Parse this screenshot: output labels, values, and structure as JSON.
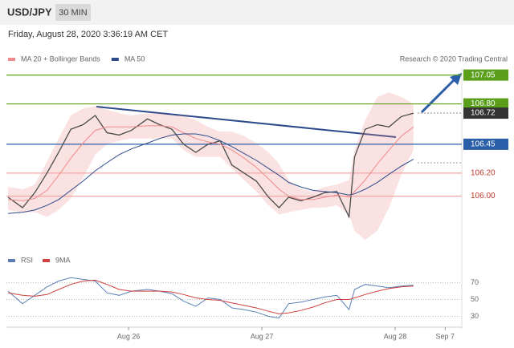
{
  "chart_data": {
    "type": "line",
    "symbol": "USD/JPY",
    "timeframe": "30 MIN",
    "timestamp": "Friday, August 28, 2020 3:36:19 AM CET",
    "attribution": "Research © 2020 Trading Central",
    "x": [
      -21.7,
      -19.1,
      -16.9,
      -14.7,
      -12.6,
      -10.4,
      -8.2,
      -6.0,
      -3.9,
      -1.7,
      0.5,
      3.4,
      5.6,
      7.8,
      9.9,
      12.1,
      14.3,
      16.5,
      18.6,
      20.8,
      23.0,
      25.2,
      27.1,
      28.8,
      31.0,
      33.2,
      35.3,
      37.5,
      39.7,
      40.7,
      42.6,
      44.8,
      46.9,
      49.1,
      51.3
    ],
    "xlim": [
      -22,
      60
    ],
    "xticks": [
      {
        "value": 0,
        "label": "Aug 26"
      },
      {
        "value": 24,
        "label": "Aug 27"
      },
      {
        "value": 48,
        "label": "Aug 28"
      },
      {
        "value": 57,
        "label": "Sep 7"
      }
    ],
    "ylim": [
      105.58,
      107.11
    ],
    "series": [
      {
        "color": "#4a4a4a",
        "values": [
          105.99,
          105.9,
          106.03,
          106.2,
          106.38,
          106.58,
          106.62,
          106.7,
          106.55,
          106.53,
          106.57,
          106.67,
          106.62,
          106.58,
          106.45,
          106.38,
          106.45,
          106.48,
          106.27,
          106.2,
          106.13,
          105.99,
          105.9,
          105.99,
          105.96,
          105.99,
          106.03,
          106.04,
          105.82,
          106.34,
          106.58,
          106.62,
          106.6,
          106.69,
          106.72
        ]
      },
      {
        "name": "MA 20 + Bollinger Bands",
        "color": "#f08a8a",
        "values": [
          105.97,
          105.96,
          105.98,
          106.05,
          106.18,
          106.33,
          106.46,
          106.57,
          106.6,
          106.6,
          106.6,
          106.61,
          106.61,
          106.6,
          106.55,
          106.5,
          106.47,
          106.45,
          106.4,
          106.33,
          106.25,
          106.15,
          106.06,
          106.0,
          105.97,
          105.97,
          105.99,
          106.01,
          105.99,
          106.04,
          106.14,
          106.28,
          106.4,
          106.52,
          106.6
        ],
        "upper": [
          106.08,
          106.06,
          106.1,
          106.3,
          106.5,
          106.7,
          106.76,
          106.78,
          106.75,
          106.72,
          106.7,
          106.72,
          106.72,
          106.7,
          106.7,
          106.66,
          106.6,
          106.56,
          106.56,
          106.52,
          106.46,
          106.38,
          106.28,
          106.14,
          106.06,
          106.04,
          106.08,
          106.1,
          106.14,
          106.4,
          106.66,
          106.86,
          106.9,
          106.86,
          106.8
        ],
        "lower": [
          105.88,
          105.86,
          105.86,
          105.82,
          105.88,
          105.98,
          106.16,
          106.36,
          106.45,
          106.48,
          106.5,
          106.5,
          106.5,
          106.5,
          106.4,
          106.34,
          106.34,
          106.34,
          106.24,
          106.14,
          106.04,
          105.92,
          105.84,
          105.86,
          105.88,
          105.9,
          105.9,
          105.92,
          105.84,
          105.7,
          105.62,
          105.7,
          105.9,
          106.18,
          106.4
        ]
      },
      {
        "name": "MA 50",
        "color": "#2c4a8a",
        "values": [
          105.85,
          105.86,
          105.88,
          105.92,
          105.97,
          106.05,
          106.13,
          106.22,
          106.29,
          106.36,
          106.41,
          106.46,
          106.5,
          106.53,
          106.54,
          106.54,
          106.52,
          106.48,
          106.43,
          106.37,
          106.31,
          106.24,
          106.18,
          106.12,
          106.08,
          106.05,
          106.04,
          106.03,
          106.01,
          106.02,
          106.06,
          106.12,
          106.19,
          106.26,
          106.32
        ]
      }
    ],
    "levels": [
      {
        "value": 107.05,
        "color": "#5a9e1a",
        "line_color": "#5a9e1a",
        "boxed": true
      },
      {
        "value": 106.8,
        "label": "106.80",
        "color": "#5a9e1a",
        "line_color": "#5a9e1a",
        "boxed": true
      },
      {
        "value": 106.72,
        "color": "#333333",
        "line_color": "#999999",
        "boxed": true,
        "dotted": true
      },
      {
        "value": 106.45,
        "color": "#2a5ea8",
        "line_color": "#2a5ea8",
        "boxed": true
      },
      {
        "value": 106.2,
        "label": "106.20",
        "color": "#c0392b",
        "line_color": "#f4a6a6",
        "boxed": false
      },
      {
        "value": 106.0,
        "label": "106.00",
        "color": "#c0392b",
        "line_color": "#f4a6a6",
        "boxed": false
      }
    ],
    "rsi": {
      "ylim": [
        20,
        82
      ],
      "yticks": [
        70,
        50,
        30
      ],
      "series": [
        {
          "name": "RSI",
          "color": "#5b7fb5",
          "values": [
            60,
            45,
            55,
            65,
            72,
            76,
            74,
            72,
            58,
            55,
            60,
            62,
            60,
            57,
            48,
            42,
            52,
            50,
            40,
            38,
            35,
            30,
            28,
            45,
            47,
            50,
            53,
            55,
            38,
            62,
            68,
            66,
            64,
            66,
            67
          ]
        },
        {
          "name": "9MA",
          "color": "#d04040",
          "values": [
            58,
            55,
            54,
            56,
            62,
            68,
            72,
            73,
            68,
            62,
            60,
            60,
            60,
            59,
            56,
            52,
            50,
            49,
            46,
            43,
            40,
            36,
            33,
            34,
            37,
            41,
            46,
            50,
            50,
            52,
            56,
            60,
            63,
            65,
            66
          ]
        }
      ]
    }
  }
}
